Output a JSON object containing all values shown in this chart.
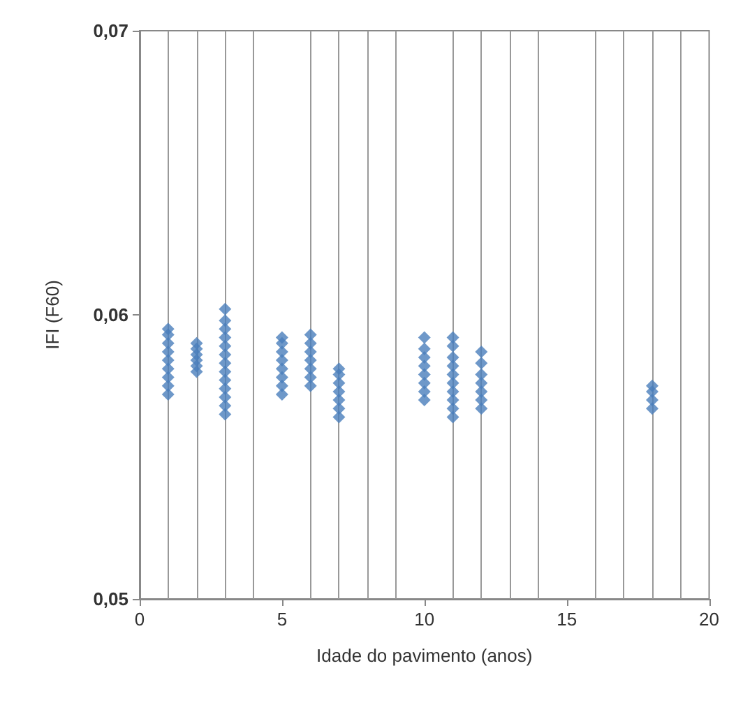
{
  "chart_data": {
    "type": "scatter",
    "xlabel": "Idade do pavimento (anos)",
    "ylabel": "IFI (F60)",
    "x": [
      1,
      1,
      1,
      1,
      1,
      1,
      1,
      1,
      1,
      2,
      2,
      2,
      2,
      2,
      2,
      3,
      3,
      3,
      3,
      3,
      3,
      3,
      3,
      3,
      3,
      3,
      3,
      3,
      5,
      5,
      5,
      5,
      5,
      5,
      5,
      5,
      6,
      6,
      6,
      6,
      6,
      6,
      6,
      7,
      7,
      7,
      7,
      7,
      7,
      7,
      10,
      10,
      10,
      10,
      10,
      10,
      10,
      10,
      11,
      11,
      11,
      11,
      11,
      11,
      11,
      11,
      11,
      11,
      12,
      12,
      12,
      12,
      12,
      12,
      12,
      18,
      18,
      18,
      18
    ],
    "series": [
      {
        "color": "#4a7ebb",
        "values": [
          0.0572,
          0.0575,
          0.0578,
          0.0581,
          0.0584,
          0.0587,
          0.059,
          0.0593,
          0.0595,
          0.058,
          0.0582,
          0.0584,
          0.0586,
          0.0588,
          0.059,
          0.0565,
          0.0568,
          0.0571,
          0.0574,
          0.0577,
          0.058,
          0.0583,
          0.0586,
          0.0589,
          0.0592,
          0.0595,
          0.0598,
          0.0602,
          0.0572,
          0.0575,
          0.0578,
          0.0581,
          0.0584,
          0.0587,
          0.059,
          0.0592,
          0.0575,
          0.0578,
          0.0581,
          0.0584,
          0.0587,
          0.059,
          0.0593,
          0.0564,
          0.0567,
          0.057,
          0.0573,
          0.0576,
          0.0579,
          0.0581,
          0.057,
          0.0573,
          0.0576,
          0.0579,
          0.0582,
          0.0585,
          0.0588,
          0.0592,
          0.0564,
          0.0567,
          0.057,
          0.0573,
          0.0576,
          0.0579,
          0.0582,
          0.0585,
          0.0589,
          0.0592,
          0.0567,
          0.057,
          0.0573,
          0.0576,
          0.0579,
          0.0583,
          0.0587,
          0.0567,
          0.057,
          0.0573,
          0.0575
        ]
      }
    ],
    "xlim": [
      0,
      20
    ],
    "xticks": [
      0,
      5,
      10,
      15,
      20
    ],
    "ylim": [
      0.05,
      0.07
    ],
    "yticks": [
      {
        "value": 0.05,
        "label": "0,05"
      },
      {
        "value": 0.06,
        "label": "0,06"
      },
      {
        "value": 0.07,
        "label": "0,07"
      }
    ],
    "grid": "x",
    "marker": "diamond"
  }
}
